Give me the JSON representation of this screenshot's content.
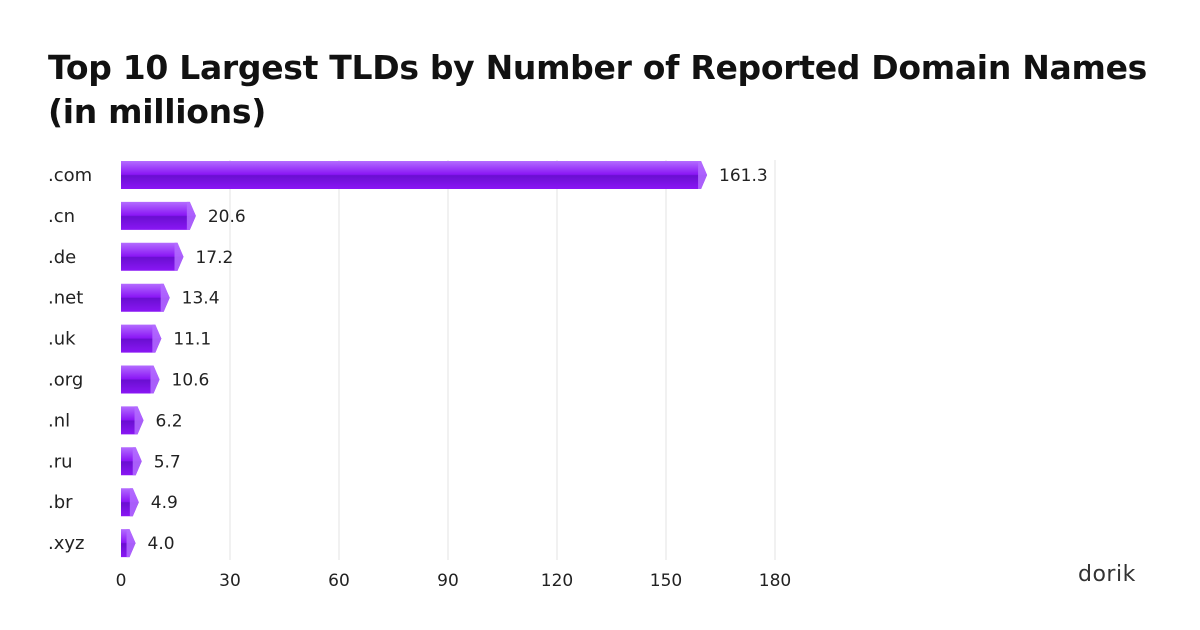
{
  "chart_data": {
    "type": "bar",
    "orientation": "horizontal",
    "title": "Top 10 Largest TLDs by Number of Reported Domain Names (in millions)",
    "categories": [
      ".com",
      ".cn",
      ".de",
      ".net",
      ".uk",
      ".org",
      ".nl",
      ".ru",
      ".br",
      ".xyz"
    ],
    "values": [
      161.3,
      20.6,
      17.2,
      13.4,
      11.1,
      10.6,
      6.2,
      5.7,
      4.9,
      4.0
    ],
    "value_labels": [
      "161.3",
      "20.6",
      "17.2",
      "13.4",
      "11.1",
      "10.6",
      "6.2",
      "5.7",
      "4.9",
      "4.0"
    ],
    "xticks": [
      0,
      30,
      60,
      90,
      120,
      150,
      180
    ],
    "xlim": [
      0,
      180
    ],
    "xlabel": "",
    "ylabel": "",
    "grid": true,
    "legend": "none",
    "bar_color": "#8a16f5",
    "bar_highlight_color": "#b36cff",
    "bar_shadow_color": "#6a0fd1"
  },
  "brand": {
    "text": "dorik"
  }
}
